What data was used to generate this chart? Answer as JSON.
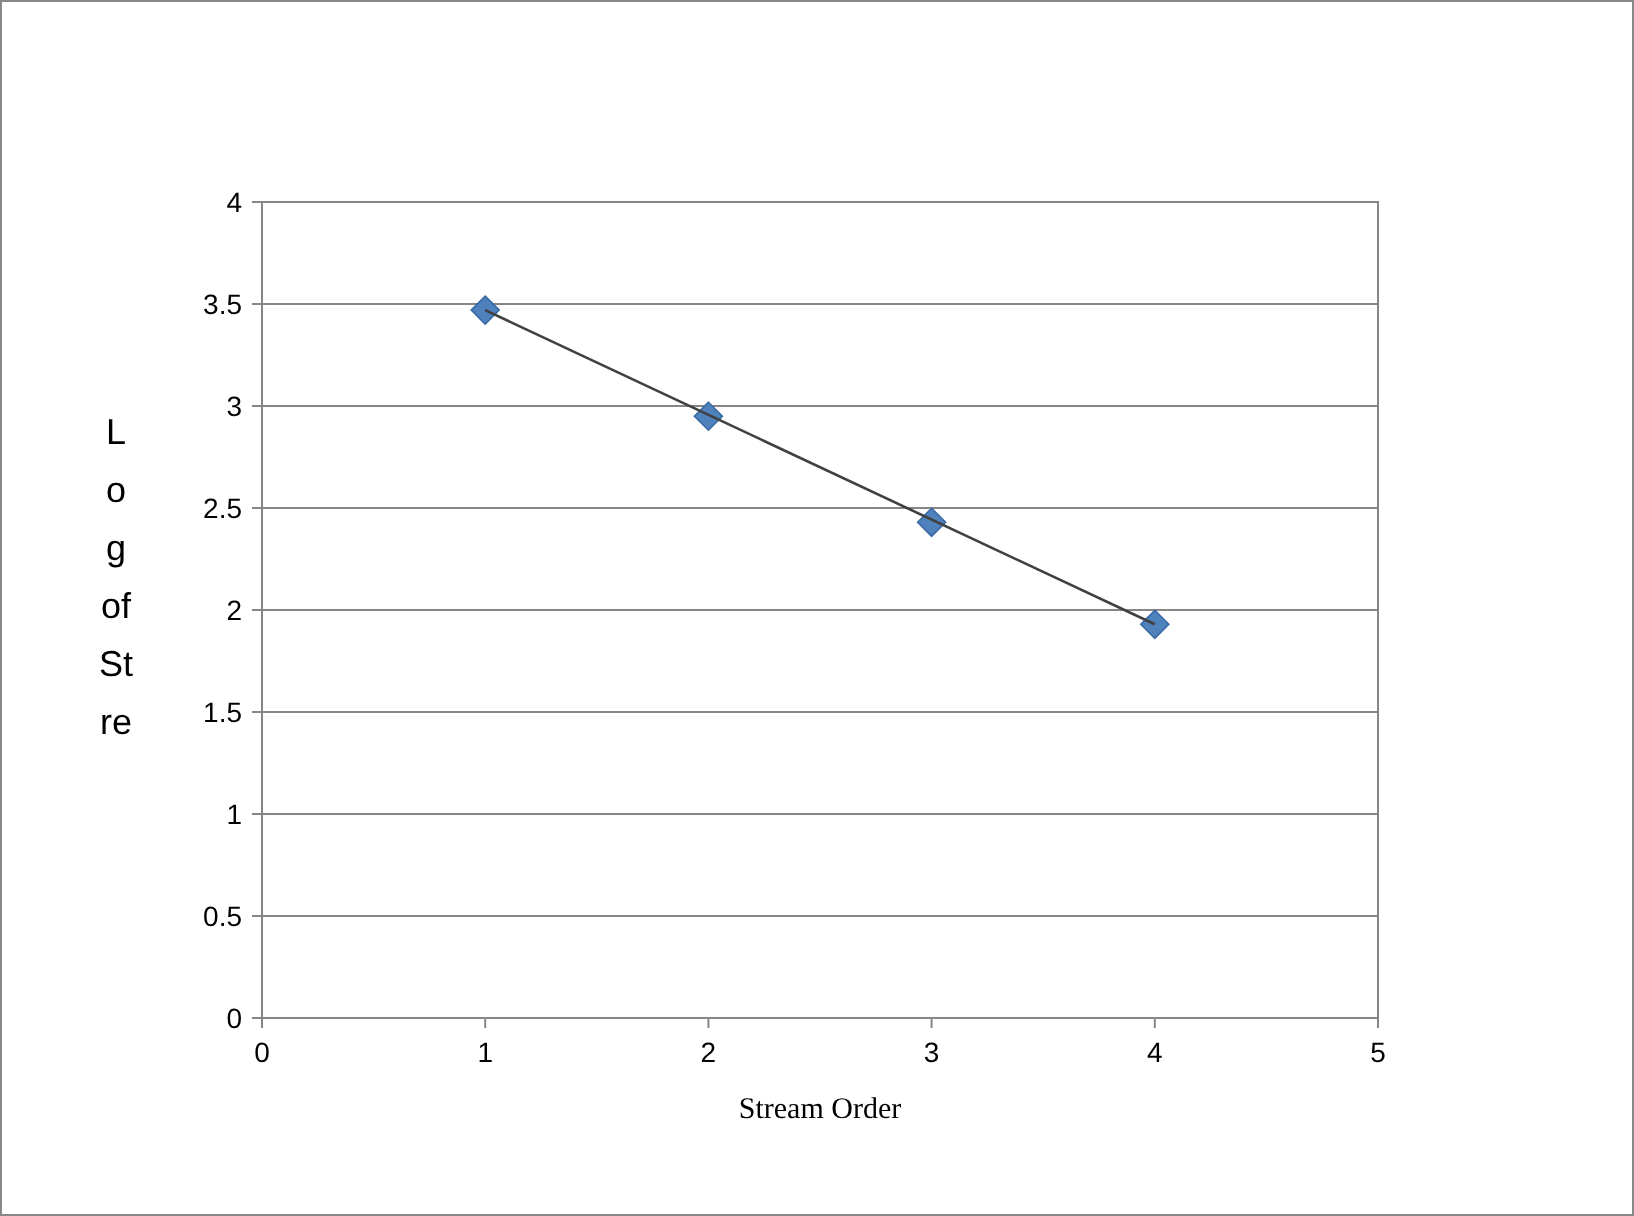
{
  "chart_data": {
    "type": "scatter",
    "xlabel": "Stream Order",
    "ylabel": "Log of Stre",
    "x": [
      1,
      2,
      3,
      4
    ],
    "series": [
      {
        "color": "#4f81bd",
        "values": [
          3.47,
          2.95,
          2.43,
          1.93
        ],
        "marker": "diamond"
      },
      {
        "type": "line",
        "color": "#404040",
        "x": [
          1,
          4
        ],
        "values": [
          3.47,
          1.93
        ],
        "marker": "none",
        "line_style": "solid"
      }
    ],
    "xlim": [
      0,
      5
    ],
    "xticks": [
      0,
      1,
      2,
      3,
      4,
      5
    ],
    "ylim": [
      0,
      4
    ],
    "yticks": [
      0,
      0.5,
      1,
      1.5,
      2,
      2.5,
      3,
      3.5,
      4
    ],
    "grid": "y"
  }
}
